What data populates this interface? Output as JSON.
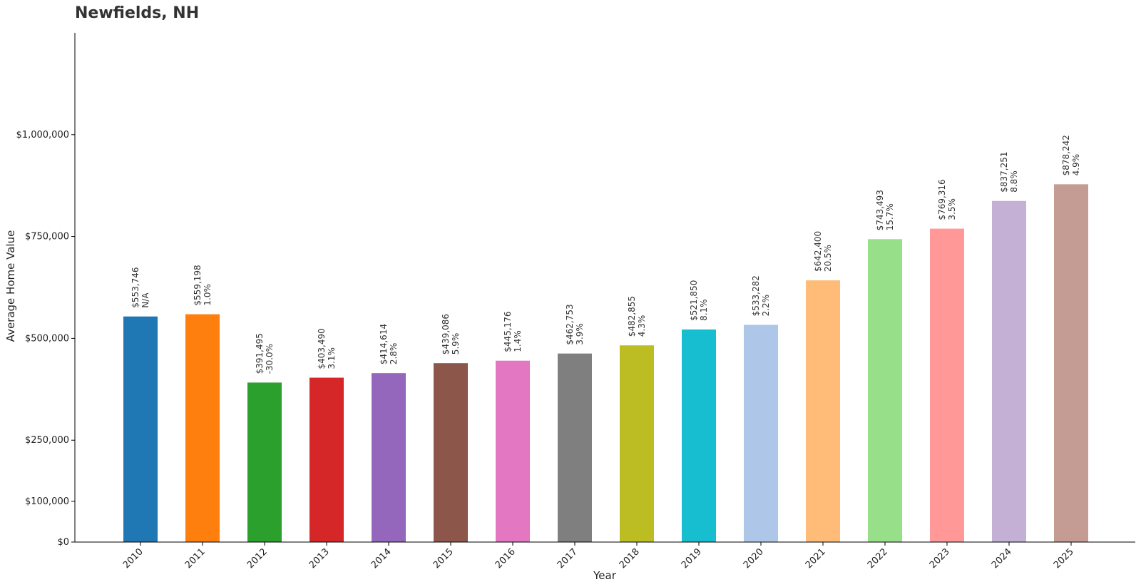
{
  "chart_data": {
    "type": "bar",
    "title": "Newfields, NH",
    "xlabel": "Year",
    "ylabel": "Average Home Value",
    "ylim": [
      0,
      1250000
    ],
    "yticks": [
      0,
      100000,
      250000,
      500000,
      750000,
      1000000
    ],
    "ytick_labels": [
      "$0",
      "$100,000",
      "$250,000",
      "$500,000",
      "$750,000",
      "$1,000,000"
    ],
    "grid": false,
    "categories": [
      "2010",
      "2011",
      "2012",
      "2013",
      "2014",
      "2015",
      "2016",
      "2017",
      "2018",
      "2019",
      "2020",
      "2021",
      "2022",
      "2023",
      "2024",
      "2025"
    ],
    "values": [
      553746,
      559198,
      391495,
      403490,
      414614,
      439086,
      445176,
      462753,
      482855,
      521850,
      533282,
      642400,
      743493,
      769316,
      837251,
      878242
    ],
    "value_labels": [
      "$553,746",
      "$559,198",
      "$391,495",
      "$403,490",
      "$414,614",
      "$439,086",
      "$445,176",
      "$462,753",
      "$482,855",
      "$521,850",
      "$533,282",
      "$642,400",
      "$743,493",
      "$769,316",
      "$837,251",
      "$878,242"
    ],
    "change_labels": [
      "N/A",
      "1.0%",
      "-30.0%",
      "3.1%",
      "2.8%",
      "5.9%",
      "1.4%",
      "3.9%",
      "4.3%",
      "8.1%",
      "2.2%",
      "20.5%",
      "15.7%",
      "3.5%",
      "8.8%",
      "4.9%"
    ],
    "colors": [
      "#1f77b4",
      "#ff7f0e",
      "#2ca02c",
      "#d62728",
      "#9467bd",
      "#8c564b",
      "#e377c2",
      "#7f7f7f",
      "#bcbd22",
      "#17becf",
      "#aec7e8",
      "#ffbb78",
      "#98df8a",
      "#ff9896",
      "#c5b0d5",
      "#c49c94"
    ]
  }
}
